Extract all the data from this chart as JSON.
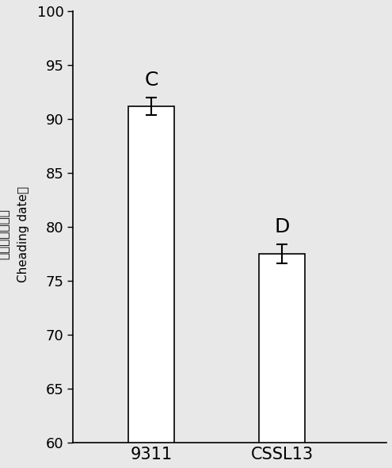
{
  "categories": [
    "9311",
    "CSSL13"
  ],
  "values": [
    91.2,
    77.5
  ],
  "errors": [
    0.8,
    0.9
  ],
  "labels": [
    "C",
    "D"
  ],
  "bar_color": "#ffffff",
  "bar_edgecolor": "#000000",
  "bar_linewidth": 1.2,
  "bar_width": 0.35,
  "x_positions": [
    1,
    2
  ],
  "xlim": [
    0.4,
    2.8
  ],
  "ylim": [
    60,
    100
  ],
  "yticks": [
    60,
    65,
    70,
    75,
    80,
    85,
    90,
    95,
    100
  ],
  "ylabel_line1": "播种到抽穗天数",
  "ylabel_line2": "Cheading date）",
  "background_color": "#e8e8e8",
  "plot_bg_color": "#e8e8e8",
  "label_fontsize": 18,
  "tick_fontsize": 13,
  "ylabel_fontsize": 11,
  "xcat_fontsize": 15,
  "errorbar_capsize": 5,
  "errorbar_linewidth": 1.5,
  "errorbar_color": "#000000"
}
